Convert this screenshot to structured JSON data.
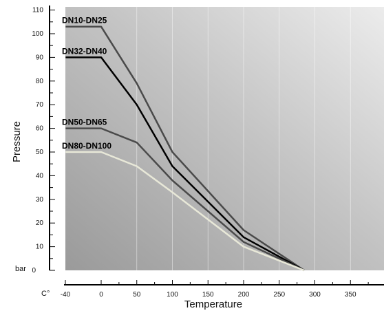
{
  "chart_data": {
    "type": "line",
    "title": "",
    "xlabel": "Temperature",
    "ylabel": "Pressure",
    "x_unit": "C°",
    "y_unit": "bar",
    "xlim": [
      -40,
      390
    ],
    "ylim": [
      0,
      110
    ],
    "x_ticks": [
      -40,
      0,
      50,
      100,
      150,
      200,
      250,
      300,
      350
    ],
    "y_ticks": [
      0,
      10,
      20,
      30,
      40,
      50,
      60,
      70,
      80,
      90,
      100,
      110
    ],
    "grid": "vertical",
    "background": "gray-gradient",
    "series": [
      {
        "name": "DN10-DN25",
        "color": "#4a4a4a",
        "points": [
          [
            -50,
            103
          ],
          [
            0,
            103
          ],
          [
            50,
            79
          ],
          [
            100,
            50
          ],
          [
            200,
            17
          ],
          [
            285,
            0
          ]
        ]
      },
      {
        "name": "DN32-DN40",
        "color": "#000000",
        "points": [
          [
            -50,
            90
          ],
          [
            0,
            90
          ],
          [
            50,
            70
          ],
          [
            100,
            44
          ],
          [
            200,
            14
          ],
          [
            285,
            0
          ]
        ]
      },
      {
        "name": "DN50-DN65",
        "color": "#4a4a4a",
        "points": [
          [
            -50,
            60
          ],
          [
            0,
            60
          ],
          [
            50,
            54
          ],
          [
            100,
            38
          ],
          [
            200,
            12
          ],
          [
            285,
            0
          ]
        ]
      },
      {
        "name": "DN80-DN100",
        "color": "#e8e8d8",
        "points": [
          [
            -50,
            50
          ],
          [
            0,
            50
          ],
          [
            50,
            44
          ],
          [
            100,
            33
          ],
          [
            200,
            10
          ],
          [
            285,
            0
          ]
        ]
      }
    ]
  }
}
